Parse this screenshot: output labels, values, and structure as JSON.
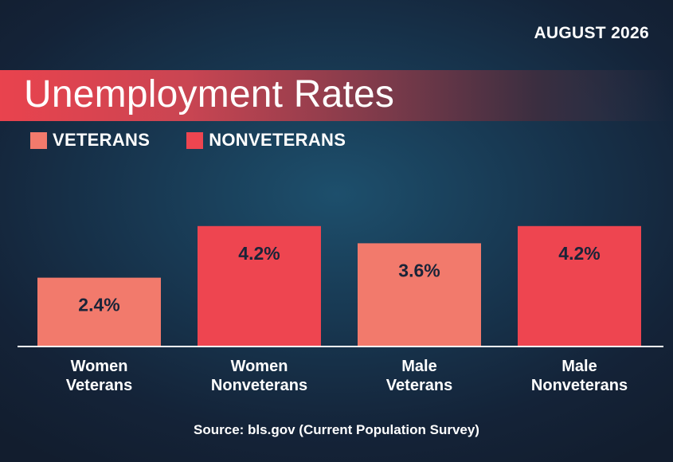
{
  "header": {
    "date": "AUGUST 2026",
    "title": "Unemployment Rates"
  },
  "colors": {
    "veterans": "#f27a6c",
    "nonveterans": "#ee4550",
    "value_text": "#1a2438",
    "axis": "#ffffff"
  },
  "legend": [
    {
      "label": "VETERANS",
      "color": "#f27a6c"
    },
    {
      "label": "NONVETERANS",
      "color": "#ee4550"
    }
  ],
  "chart_data": {
    "type": "bar",
    "title": "Unemployment Rates",
    "categories": [
      "Women Veterans",
      "Women Nonveterans",
      "Male Veterans",
      "Male Nonveterans"
    ],
    "category_lines": [
      [
        "Women",
        "Veterans"
      ],
      [
        "Women",
        "Nonveterans"
      ],
      [
        "Male",
        "Veterans"
      ],
      [
        "Male",
        "Nonveterans"
      ]
    ],
    "values": [
      2.4,
      4.2,
      3.6,
      4.2
    ],
    "value_labels": [
      "2.4%",
      "4.2%",
      "3.6%",
      "4.2%"
    ],
    "series_of_bar": [
      "VETERANS",
      "NONVETERANS",
      "VETERANS",
      "NONVETERANS"
    ],
    "unit": "%",
    "grid": false,
    "legend_position": "top-left"
  },
  "source": "Source: bls.gov (Current Population Survey)"
}
